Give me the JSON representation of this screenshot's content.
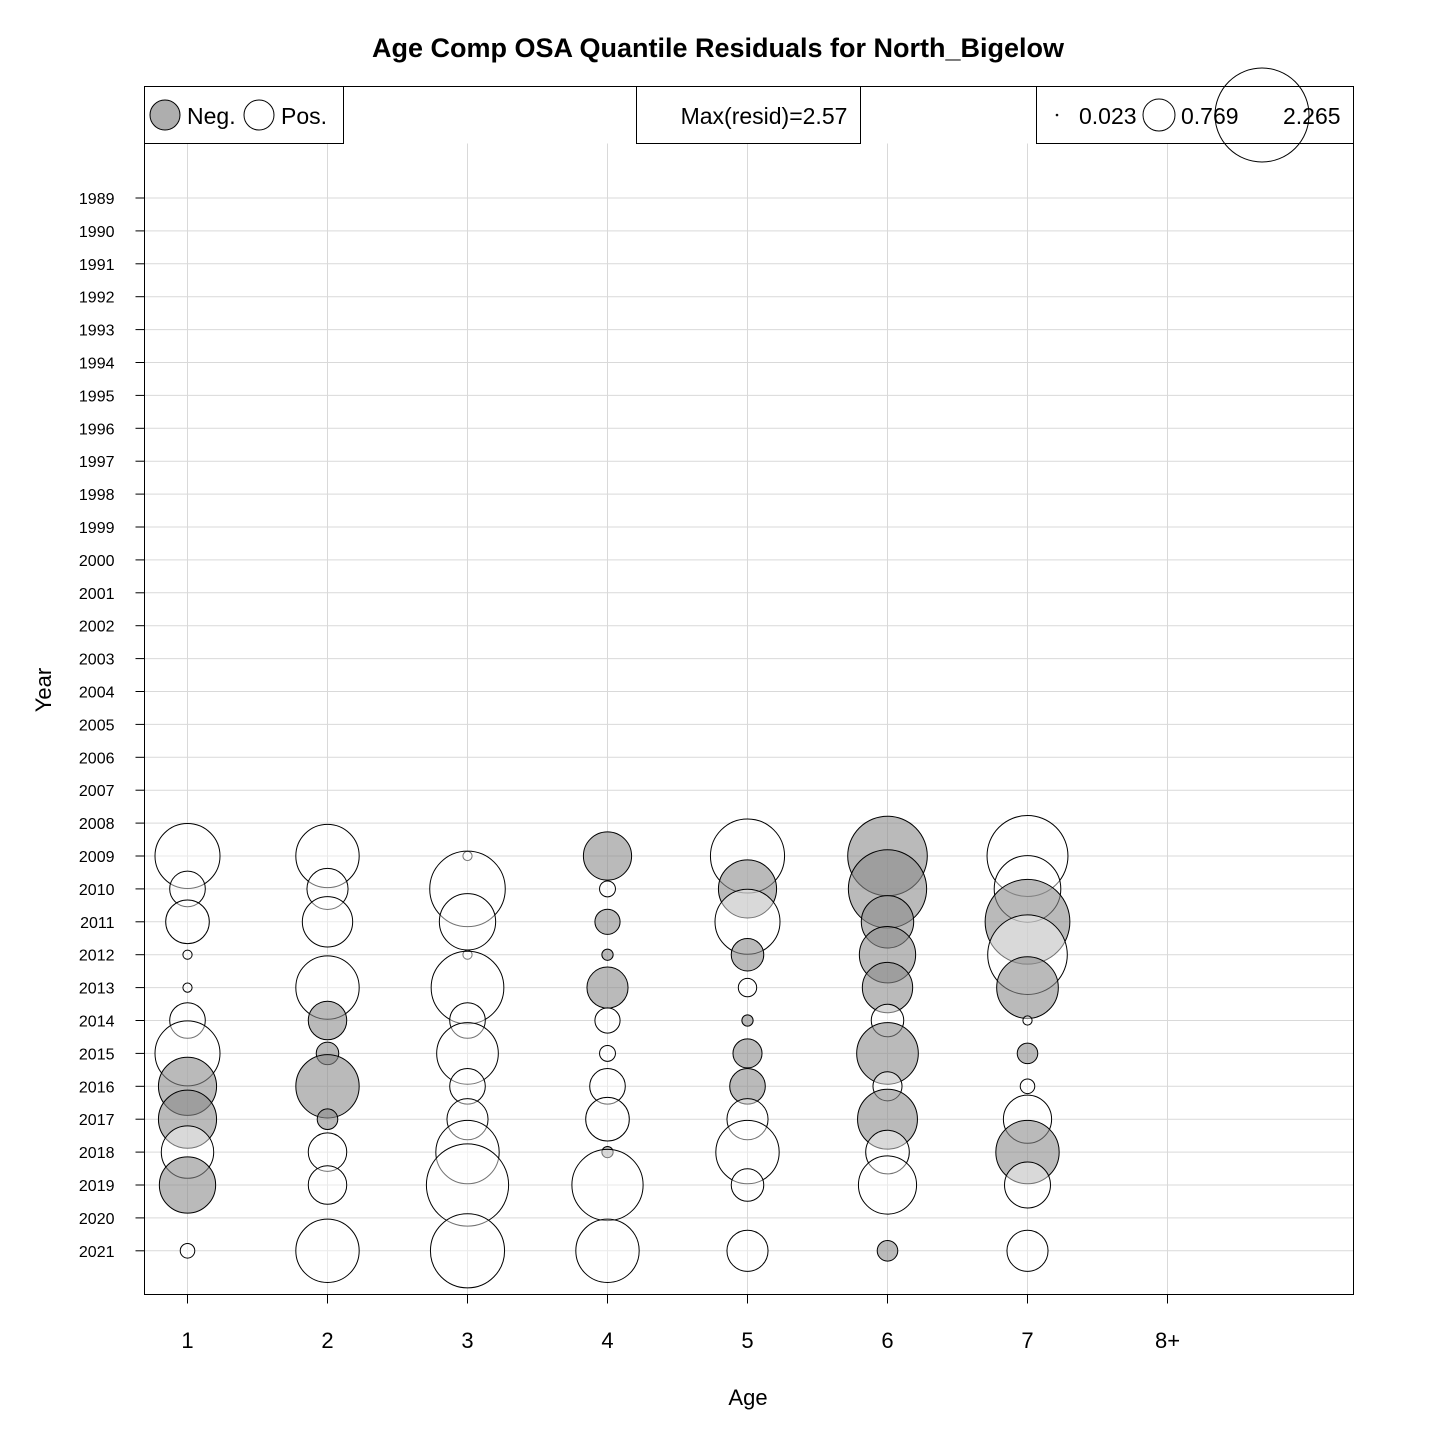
{
  "chart_data": {
    "type": "scatter",
    "subtype": "bubble",
    "title": "Age Comp OSA Quantile Residuals for North_Bigelow",
    "xlabel": "Age",
    "ylabel": "Year",
    "x_categories": [
      "1",
      "2",
      "3",
      "4",
      "5",
      "6",
      "7",
      "8+"
    ],
    "years": [
      "1989",
      "1990",
      "1991",
      "1992",
      "1993",
      "1994",
      "1995",
      "1996",
      "1997",
      "1998",
      "1999",
      "2000",
      "2001",
      "2002",
      "2003",
      "2004",
      "2005",
      "2006",
      "2007",
      "2008",
      "2009",
      "2010",
      "2011",
      "2012",
      "2013",
      "2014",
      "2015",
      "2016",
      "2017",
      "2018",
      "2019",
      "2020",
      "2021"
    ],
    "grid": true,
    "colors": {
      "negative": "#8c8c8c",
      "positive": "#ffffff",
      "outline": "#000000"
    },
    "legend": {
      "sign": {
        "neg_label": "Neg.",
        "pos_label": "Pos.",
        "placement": "top-left"
      },
      "max_text": "Max(resid)=2.57",
      "size": {
        "values": [
          "0.023",
          "0.769",
          "2.265"
        ],
        "placement": "top-right"
      }
    },
    "points": [
      {
        "age": "1",
        "year": "2009",
        "resid": 1.0
      },
      {
        "age": "1",
        "year": "2010",
        "resid": 0.3
      },
      {
        "age": "1",
        "year": "2011",
        "resid": 0.45
      },
      {
        "age": "1",
        "year": "2012",
        "resid": 0.02
      },
      {
        "age": "1",
        "year": "2013",
        "resid": 0.02
      },
      {
        "age": "1",
        "year": "2014",
        "resid": 0.3
      },
      {
        "age": "1",
        "year": "2015",
        "resid": 1.0
      },
      {
        "age": "1",
        "year": "2016",
        "resid": -0.8
      },
      {
        "age": "1",
        "year": "2017",
        "resid": -0.8
      },
      {
        "age": "1",
        "year": "2018",
        "resid": 0.65
      },
      {
        "age": "1",
        "year": "2019",
        "resid": -0.75
      },
      {
        "age": "1",
        "year": "2021",
        "resid": 0.05
      },
      {
        "age": "2",
        "year": "2009",
        "resid": 0.95
      },
      {
        "age": "2",
        "year": "2010",
        "resid": 0.4
      },
      {
        "age": "2",
        "year": "2011",
        "resid": 0.6
      },
      {
        "age": "2",
        "year": "2013",
        "resid": 0.95
      },
      {
        "age": "2",
        "year": "2014",
        "resid": -0.35
      },
      {
        "age": "2",
        "year": "2015",
        "resid": -0.12
      },
      {
        "age": "2",
        "year": "2016",
        "resid": -0.95
      },
      {
        "age": "2",
        "year": "2017",
        "resid": -0.1
      },
      {
        "age": "2",
        "year": "2018",
        "resid": 0.35
      },
      {
        "age": "2",
        "year": "2019",
        "resid": 0.35
      },
      {
        "age": "2",
        "year": "2021",
        "resid": 0.95
      },
      {
        "age": "3",
        "year": "2009",
        "resid": 0.02
      },
      {
        "age": "3",
        "year": "2010",
        "resid": 1.35
      },
      {
        "age": "3",
        "year": "2011",
        "resid": 0.75
      },
      {
        "age": "3",
        "year": "2012",
        "resid": 0.02
      },
      {
        "age": "3",
        "year": "2013",
        "resid": 1.25
      },
      {
        "age": "3",
        "year": "2014",
        "resid": 0.3
      },
      {
        "age": "3",
        "year": "2015",
        "resid": 0.9
      },
      {
        "age": "3",
        "year": "2016",
        "resid": 0.3
      },
      {
        "age": "3",
        "year": "2017",
        "resid": 0.4
      },
      {
        "age": "3",
        "year": "2018",
        "resid": 0.95
      },
      {
        "age": "3",
        "year": "2019",
        "resid": 1.6
      },
      {
        "age": "3",
        "year": "2021",
        "resid": 1.3
      },
      {
        "age": "4",
        "year": "2009",
        "resid": -0.55
      },
      {
        "age": "4",
        "year": "2010",
        "resid": 0.06
      },
      {
        "age": "4",
        "year": "2011",
        "resid": -0.15
      },
      {
        "age": "4",
        "year": "2012",
        "resid": -0.03
      },
      {
        "age": "4",
        "year": "2013",
        "resid": -0.4
      },
      {
        "age": "4",
        "year": "2014",
        "resid": 0.15
      },
      {
        "age": "4",
        "year": "2015",
        "resid": 0.06
      },
      {
        "age": "4",
        "year": "2016",
        "resid": 0.3
      },
      {
        "age": "4",
        "year": "2017",
        "resid": 0.45
      },
      {
        "age": "4",
        "year": "2018",
        "resid": -0.03
      },
      {
        "age": "4",
        "year": "2019",
        "resid": 1.2
      },
      {
        "age": "4",
        "year": "2021",
        "resid": 0.95
      },
      {
        "age": "5",
        "year": "2009",
        "resid": 1.3
      },
      {
        "age": "5",
        "year": "2010",
        "resid": -0.8
      },
      {
        "age": "5",
        "year": "2011",
        "resid": 1.0
      },
      {
        "age": "5",
        "year": "2012",
        "resid": -0.25
      },
      {
        "age": "5",
        "year": "2013",
        "resid": 0.08
      },
      {
        "age": "5",
        "year": "2014",
        "resid": -0.03
      },
      {
        "age": "5",
        "year": "2015",
        "resid": -0.2
      },
      {
        "age": "5",
        "year": "2016",
        "resid": -0.3
      },
      {
        "age": "5",
        "year": "2017",
        "resid": 0.4
      },
      {
        "age": "5",
        "year": "2018",
        "resid": 0.95
      },
      {
        "age": "5",
        "year": "2019",
        "resid": 0.25
      },
      {
        "age": "5",
        "year": "2021",
        "resid": 0.4
      },
      {
        "age": "6",
        "year": "2009",
        "resid": -1.5
      },
      {
        "age": "6",
        "year": "2010",
        "resid": -1.45
      },
      {
        "age": "6",
        "year": "2011",
        "resid": -0.65
      },
      {
        "age": "6",
        "year": "2012",
        "resid": -0.75
      },
      {
        "age": "6",
        "year": "2013",
        "resid": -0.6
      },
      {
        "age": "6",
        "year": "2014",
        "resid": 0.25
      },
      {
        "age": "6",
        "year": "2015",
        "resid": -0.9
      },
      {
        "age": "6",
        "year": "2016",
        "resid": 0.2
      },
      {
        "age": "6",
        "year": "2017",
        "resid": -0.85
      },
      {
        "age": "6",
        "year": "2018",
        "resid": 0.45
      },
      {
        "age": "6",
        "year": "2019",
        "resid": 0.8
      },
      {
        "age": "6",
        "year": "2021",
        "resid": -0.1
      },
      {
        "age": "7",
        "year": "2009",
        "resid": 1.55
      },
      {
        "age": "7",
        "year": "2010",
        "resid": 1.05
      },
      {
        "age": "7",
        "year": "2011",
        "resid": -1.7
      },
      {
        "age": "7",
        "year": "2012",
        "resid": 1.5
      },
      {
        "age": "7",
        "year": "2013",
        "resid": -0.9
      },
      {
        "age": "7",
        "year": "2014",
        "resid": 0.02
      },
      {
        "age": "7",
        "year": "2015",
        "resid": -0.1
      },
      {
        "age": "7",
        "year": "2016",
        "resid": 0.05
      },
      {
        "age": "7",
        "year": "2017",
        "resid": 0.55
      },
      {
        "age": "7",
        "year": "2018",
        "resid": -0.95
      },
      {
        "age": "7",
        "year": "2019",
        "resid": 0.5
      },
      {
        "age": "7",
        "year": "2021",
        "resid": 0.4
      }
    ]
  }
}
